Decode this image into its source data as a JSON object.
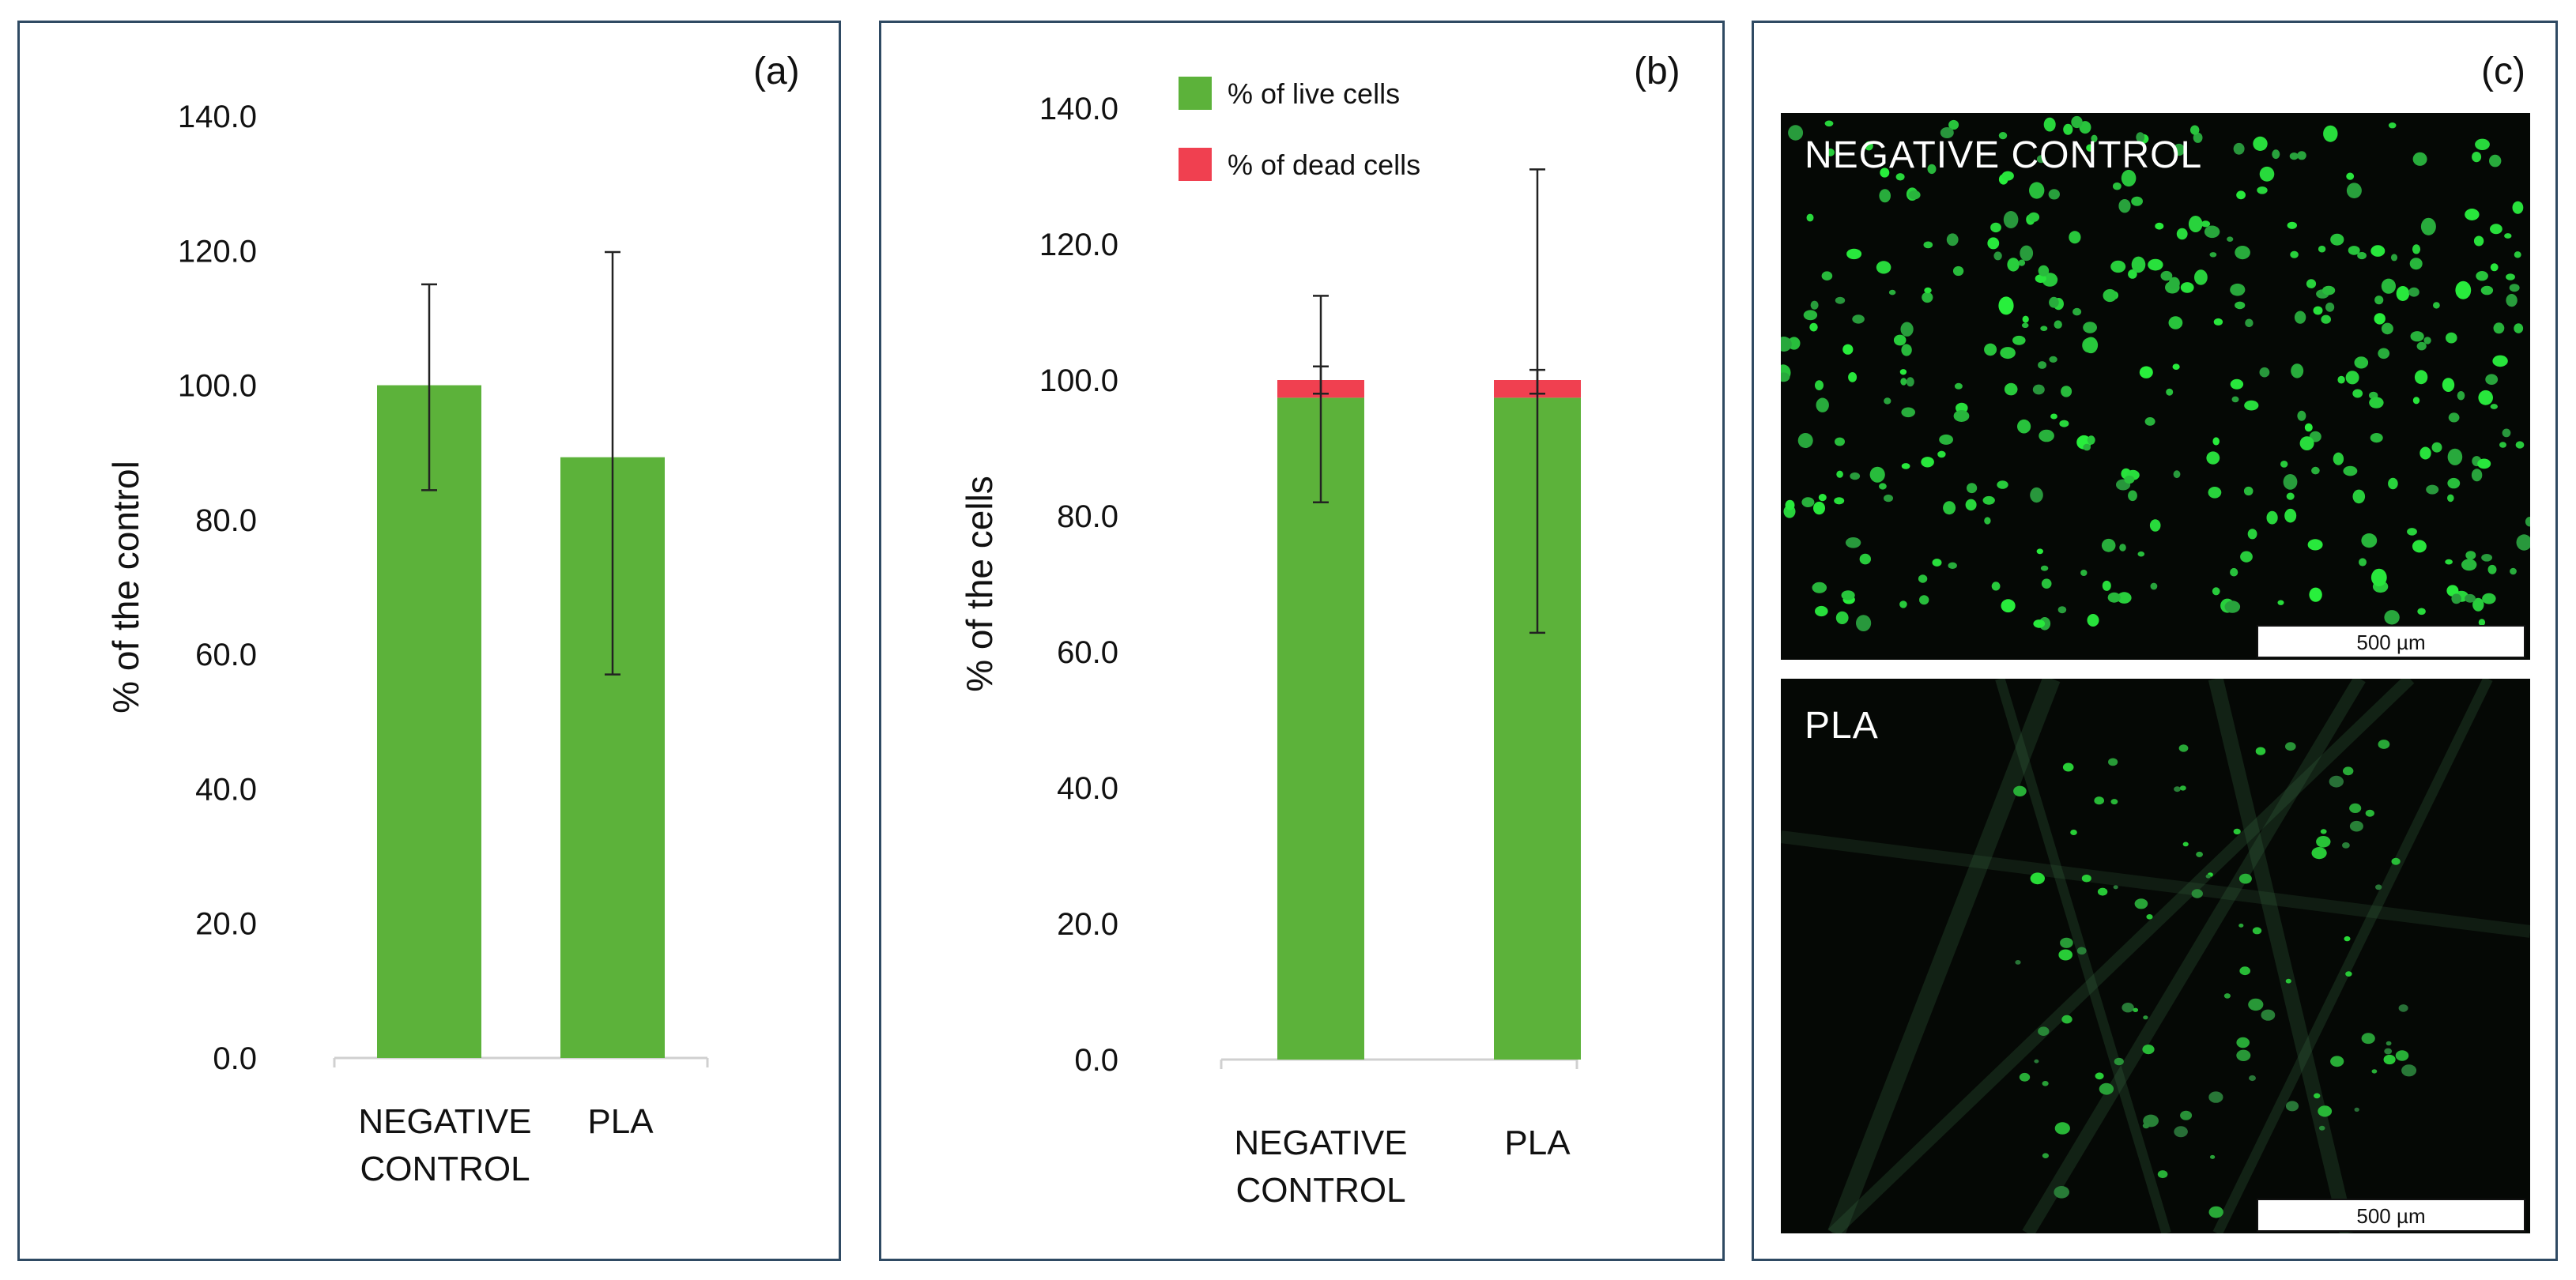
{
  "colors": {
    "live": "#5cb23a",
    "dead": "#f04050",
    "axis": "#d0d0d0",
    "error": "#222222"
  },
  "chart_data": [
    {
      "panel": "(a)",
      "type": "bar",
      "categories": [
        [
          "NEGATIVE",
          "CONTROL"
        ],
        [
          "PLA"
        ]
      ],
      "values": [
        100.0,
        89.3
      ],
      "errors": [
        [
          84.4,
          115.0
        ],
        [
          57.0,
          119.8
        ]
      ],
      "ylabel": "% of the control",
      "ylim": [
        0,
        140
      ],
      "yticks": [
        "0.0",
        "20.0",
        "40.0",
        "60.0",
        "80.0",
        "100.0",
        "120.0",
        "140.0"
      ],
      "grid": false
    },
    {
      "panel": "(b)",
      "type": "bar",
      "stacked": true,
      "categories": [
        [
          "NEGATIVE",
          "CONTROL"
        ],
        [
          "PLA"
        ]
      ],
      "series": [
        {
          "name": "% of live cells",
          "values": [
            97.4,
            97.4
          ],
          "errors": [
            [
              82.0,
              112.4
            ],
            [
              62.8,
              131.0
            ]
          ]
        },
        {
          "name": "% of dead cells",
          "values": [
            2.6,
            2.6
          ],
          "errors": [
            [
              98.0,
              102.0
            ],
            [
              98.0,
              101.5
            ]
          ]
        }
      ],
      "ylabel": "% of the cells",
      "ylim": [
        0,
        140
      ],
      "yticks": [
        "0.0",
        "20.0",
        "40.0",
        "60.0",
        "80.0",
        "100.0",
        "120.0",
        "140.0"
      ],
      "legend": "top-left",
      "grid": false
    }
  ],
  "panel_c": {
    "letter": "(c)",
    "images": [
      {
        "label": "NEGATIVE CONTROL",
        "scalebar": "500 µm"
      },
      {
        "label": "PLA",
        "scalebar": "500 µm"
      }
    ]
  }
}
